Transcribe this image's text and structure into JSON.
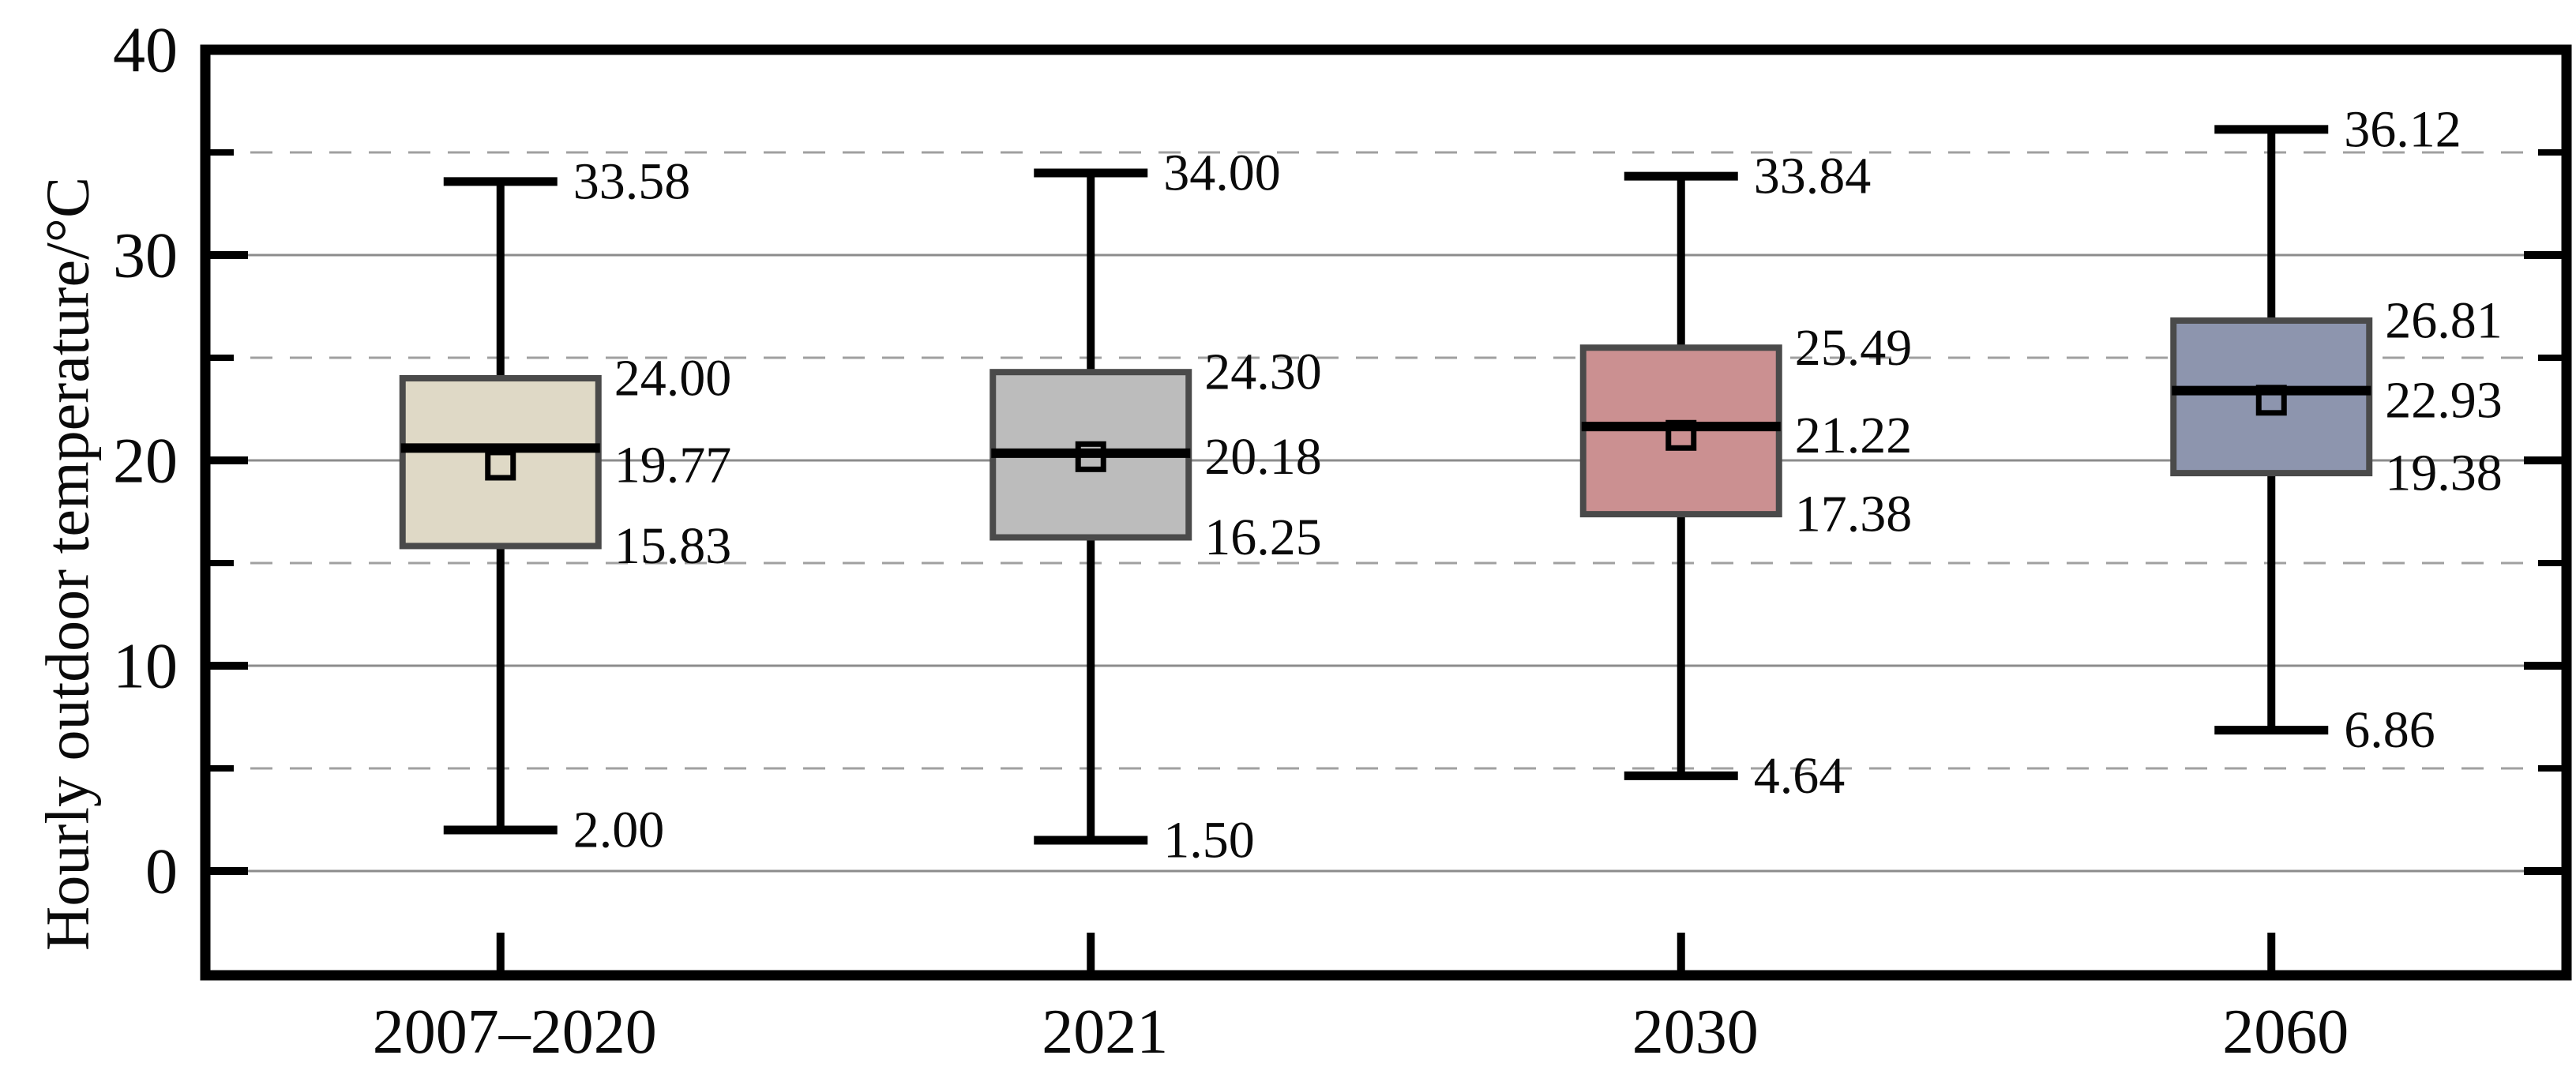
{
  "figure": {
    "background": "#ffffff",
    "text_color": "#0a0a0a"
  },
  "chart_data": {
    "type": "box",
    "title": "",
    "xlabel": "",
    "ylabel": "Hourly outdoor temperature/°C",
    "categories": [
      "2007–2020",
      "2021",
      "2030",
      "2060"
    ],
    "y_axis": {
      "ticks": [
        0,
        10,
        20,
        30,
        40
      ],
      "tick_labels": [
        "0",
        "10",
        "20",
        "30",
        "40"
      ],
      "minor_ticks": [
        5,
        15,
        25,
        35
      ],
      "ylim_top": 40,
      "ylim_bottom": -5.1,
      "grid_major": "solid",
      "grid_minor": "dashed",
      "legend": "none"
    },
    "boxes": [
      {
        "category": "2007–2020",
        "whisker_low": 2.0,
        "q1": 15.83,
        "mean": 19.77,
        "median": 20.6,
        "q3": 24.0,
        "whisker_high": 33.58,
        "fill": "#dfd9c6",
        "labels": {
          "high": "33.58",
          "q3": "24.00",
          "mid": "19.77",
          "q1": "15.83",
          "low": "2.00"
        }
      },
      {
        "category": "2021",
        "whisker_low": 1.5,
        "q1": 16.25,
        "mean": 20.18,
        "median": 20.35,
        "q3": 24.3,
        "whisker_high": 34.0,
        "fill": "#bcbcbc",
        "labels": {
          "high": "34.00",
          "q3": "24.30",
          "mid": "20.18",
          "q1": "16.25",
          "low": "1.50"
        }
      },
      {
        "category": "2030",
        "whisker_low": 4.64,
        "q1": 17.38,
        "mean": 21.22,
        "median": 21.65,
        "q3": 25.49,
        "whisker_high": 33.84,
        "fill": "#cb9091",
        "labels": {
          "high": "33.84",
          "q3": "25.49",
          "mid": "21.22",
          "q1": "17.38",
          "low": "4.64"
        }
      },
      {
        "category": "2060",
        "whisker_low": 6.86,
        "q1": 19.38,
        "mean": 22.93,
        "median": 23.4,
        "q3": 26.81,
        "whisker_high": 36.12,
        "fill": "#8d95ae",
        "labels": {
          "high": "36.12",
          "q3": "26.81",
          "mid": "22.93",
          "q1": "19.38",
          "low": "6.86"
        }
      }
    ],
    "style": {
      "box_border_color": "#4a4a4a",
      "whisker_color": "#000000",
      "median_color": "#000000",
      "mean_marker": "hollow-square",
      "mean_marker_color": "#000000",
      "axis_color": "#000000",
      "grid_major_color": "#8c8c8c",
      "grid_minor_color": "#a0a0a0"
    }
  }
}
